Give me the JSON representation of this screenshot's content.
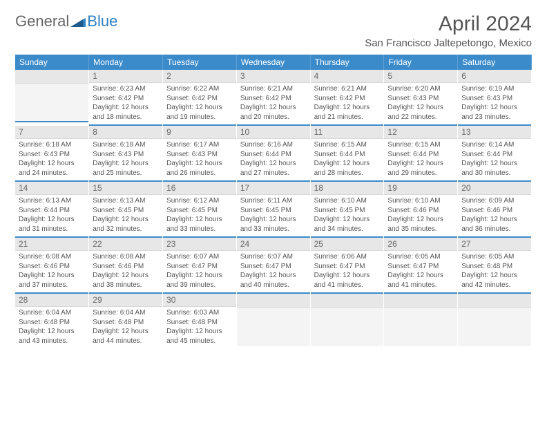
{
  "logo": {
    "general": "General",
    "blue": "Blue"
  },
  "title": "April 2024",
  "location": "San Francisco Jaltepetongo, Mexico",
  "theme": {
    "header_bg": "#3b8bcb",
    "header_text": "#ffffff",
    "daynum_bg": "#e7e7e7",
    "body_text": "#555555",
    "logo_blue": "#2f7fc1",
    "row_divider": "#3b8bcb"
  },
  "weekdays": [
    "Sunday",
    "Monday",
    "Tuesday",
    "Wednesday",
    "Thursday",
    "Friday",
    "Saturday"
  ],
  "start_offset": 1,
  "days": [
    {
      "n": 1,
      "sunrise": "6:23 AM",
      "sunset": "6:42 PM",
      "daylight": "12 hours and 18 minutes."
    },
    {
      "n": 2,
      "sunrise": "6:22 AM",
      "sunset": "6:42 PM",
      "daylight": "12 hours and 19 minutes."
    },
    {
      "n": 3,
      "sunrise": "6:21 AM",
      "sunset": "6:42 PM",
      "daylight": "12 hours and 20 minutes."
    },
    {
      "n": 4,
      "sunrise": "6:21 AM",
      "sunset": "6:42 PM",
      "daylight": "12 hours and 21 minutes."
    },
    {
      "n": 5,
      "sunrise": "6:20 AM",
      "sunset": "6:43 PM",
      "daylight": "12 hours and 22 minutes."
    },
    {
      "n": 6,
      "sunrise": "6:19 AM",
      "sunset": "6:43 PM",
      "daylight": "12 hours and 23 minutes."
    },
    {
      "n": 7,
      "sunrise": "6:18 AM",
      "sunset": "6:43 PM",
      "daylight": "12 hours and 24 minutes."
    },
    {
      "n": 8,
      "sunrise": "6:18 AM",
      "sunset": "6:43 PM",
      "daylight": "12 hours and 25 minutes."
    },
    {
      "n": 9,
      "sunrise": "6:17 AM",
      "sunset": "6:43 PM",
      "daylight": "12 hours and 26 minutes."
    },
    {
      "n": 10,
      "sunrise": "6:16 AM",
      "sunset": "6:44 PM",
      "daylight": "12 hours and 27 minutes."
    },
    {
      "n": 11,
      "sunrise": "6:15 AM",
      "sunset": "6:44 PM",
      "daylight": "12 hours and 28 minutes."
    },
    {
      "n": 12,
      "sunrise": "6:15 AM",
      "sunset": "6:44 PM",
      "daylight": "12 hours and 29 minutes."
    },
    {
      "n": 13,
      "sunrise": "6:14 AM",
      "sunset": "6:44 PM",
      "daylight": "12 hours and 30 minutes."
    },
    {
      "n": 14,
      "sunrise": "6:13 AM",
      "sunset": "6:44 PM",
      "daylight": "12 hours and 31 minutes."
    },
    {
      "n": 15,
      "sunrise": "6:13 AM",
      "sunset": "6:45 PM",
      "daylight": "12 hours and 32 minutes."
    },
    {
      "n": 16,
      "sunrise": "6:12 AM",
      "sunset": "6:45 PM",
      "daylight": "12 hours and 33 minutes."
    },
    {
      "n": 17,
      "sunrise": "6:11 AM",
      "sunset": "6:45 PM",
      "daylight": "12 hours and 33 minutes."
    },
    {
      "n": 18,
      "sunrise": "6:10 AM",
      "sunset": "6:45 PM",
      "daylight": "12 hours and 34 minutes."
    },
    {
      "n": 19,
      "sunrise": "6:10 AM",
      "sunset": "6:46 PM",
      "daylight": "12 hours and 35 minutes."
    },
    {
      "n": 20,
      "sunrise": "6:09 AM",
      "sunset": "6:46 PM",
      "daylight": "12 hours and 36 minutes."
    },
    {
      "n": 21,
      "sunrise": "6:08 AM",
      "sunset": "6:46 PM",
      "daylight": "12 hours and 37 minutes."
    },
    {
      "n": 22,
      "sunrise": "6:08 AM",
      "sunset": "6:46 PM",
      "daylight": "12 hours and 38 minutes."
    },
    {
      "n": 23,
      "sunrise": "6:07 AM",
      "sunset": "6:47 PM",
      "daylight": "12 hours and 39 minutes."
    },
    {
      "n": 24,
      "sunrise": "6:07 AM",
      "sunset": "6:47 PM",
      "daylight": "12 hours and 40 minutes."
    },
    {
      "n": 25,
      "sunrise": "6:06 AM",
      "sunset": "6:47 PM",
      "daylight": "12 hours and 41 minutes."
    },
    {
      "n": 26,
      "sunrise": "6:05 AM",
      "sunset": "6:47 PM",
      "daylight": "12 hours and 41 minutes."
    },
    {
      "n": 27,
      "sunrise": "6:05 AM",
      "sunset": "6:48 PM",
      "daylight": "12 hours and 42 minutes."
    },
    {
      "n": 28,
      "sunrise": "6:04 AM",
      "sunset": "6:48 PM",
      "daylight": "12 hours and 43 minutes."
    },
    {
      "n": 29,
      "sunrise": "6:04 AM",
      "sunset": "6:48 PM",
      "daylight": "12 hours and 44 minutes."
    },
    {
      "n": 30,
      "sunrise": "6:03 AM",
      "sunset": "6:48 PM",
      "daylight": "12 hours and 45 minutes."
    }
  ],
  "labels": {
    "sunrise": "Sunrise:",
    "sunset": "Sunset:",
    "daylight": "Daylight:"
  }
}
